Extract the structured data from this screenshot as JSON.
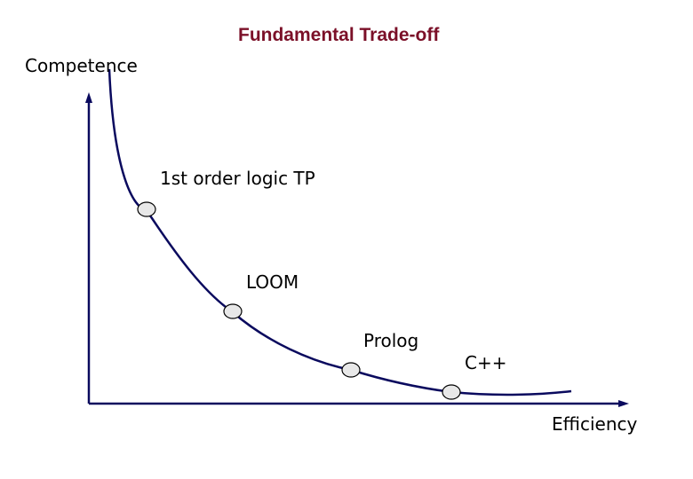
{
  "title": "Fundamental Trade-off",
  "y_axis_label": "Competence",
  "x_axis_label": "Efficiency",
  "points": [
    {
      "label": "1st order logic TP"
    },
    {
      "label": "LOOM"
    },
    {
      "label": "Prolog"
    },
    {
      "label": "C++"
    }
  ],
  "colors": {
    "title": "#7b1028",
    "curve": "#0a0a5e",
    "axes": "#0a0a5e",
    "marker_fill": "#e8e8e8"
  }
}
